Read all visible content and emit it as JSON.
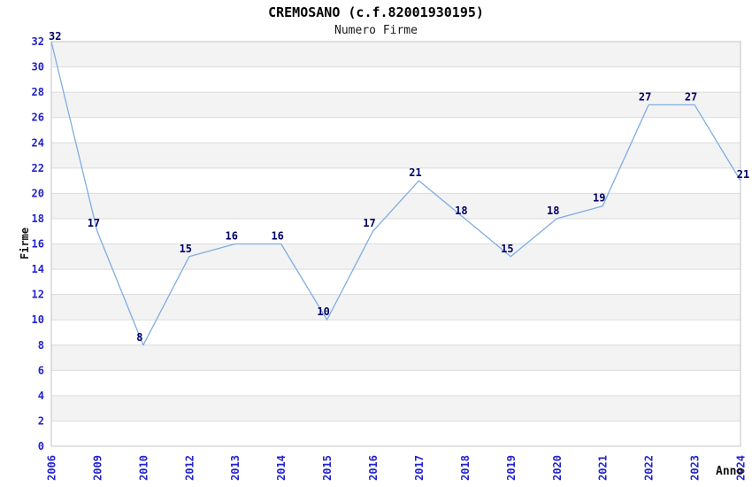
{
  "chart_data": {
    "type": "line",
    "title": "CREMOSANO (c.f.82001930195)",
    "subtitle": "Numero Firme",
    "xlabel": "Anno",
    "ylabel": "Firme",
    "x": [
      "2006",
      "2009",
      "2010",
      "2012",
      "2013",
      "2014",
      "2015",
      "2016",
      "2017",
      "2018",
      "2019",
      "2020",
      "2021",
      "2022",
      "2023",
      "2024"
    ],
    "values": [
      32,
      17,
      8,
      15,
      16,
      16,
      10,
      17,
      21,
      18,
      15,
      18,
      19,
      27,
      27,
      21
    ],
    "ylim": [
      0,
      32
    ],
    "ytick_step": 2,
    "grid": "horizontal-bands-alternating",
    "legend": "none",
    "data_labels": "on",
    "colors": {
      "line": "#7fade0",
      "tick_label": "#2323cc",
      "data_label": "#000066",
      "band_gray": "#f3f3f3",
      "gridline": "#dcdcdc",
      "axis_border": "#c3c3c3",
      "title_text": "#000000"
    }
  }
}
